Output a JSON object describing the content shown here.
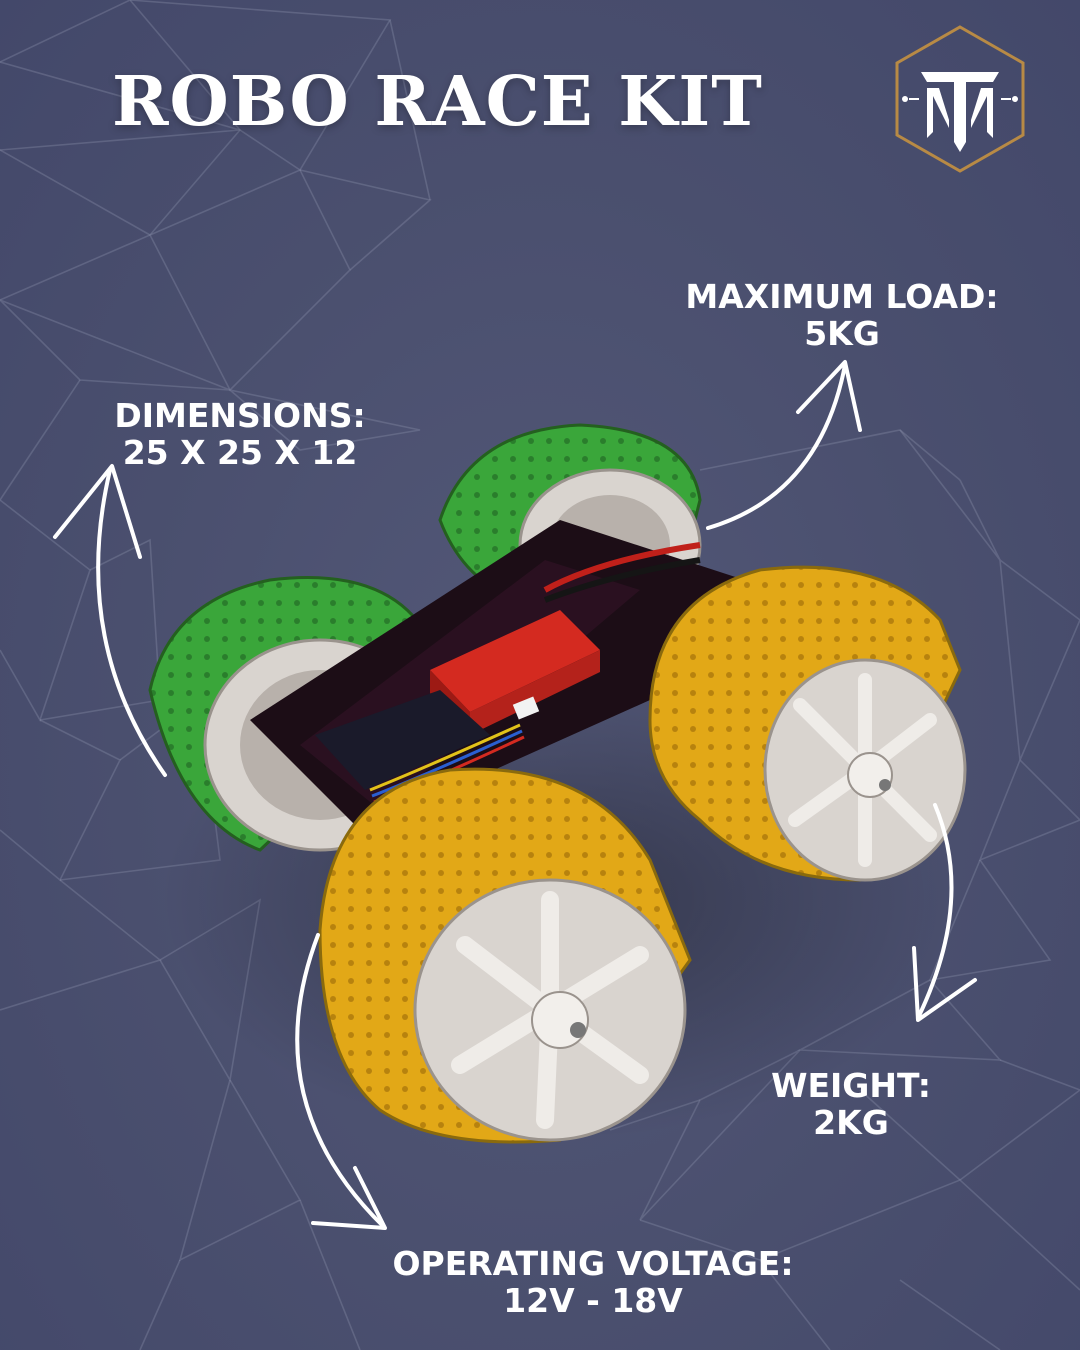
{
  "title": "ROBO RACE KIT",
  "logo": {
    "name": "tm-monogram-logo",
    "letters": "TM",
    "accent_color": "#b88a45"
  },
  "specs": {
    "max_load": {
      "label": "MAXIMUM LOAD:",
      "value": "5KG"
    },
    "dimensions": {
      "label": "DIMENSIONS:",
      "value": "25 X 25 X 12"
    },
    "weight": {
      "label": "WEIGHT:",
      "value": "2KG"
    },
    "voltage": {
      "label": "OPERATING VOLTAGE:",
      "value": "12V - 18V"
    }
  },
  "product": {
    "name": "robot-race-car",
    "wheel_colors": [
      "#3aa63a",
      "#e2a817"
    ],
    "battery_color": "#d42a20"
  },
  "colors": {
    "background": "#4a4f6e",
    "text": "#ffffff",
    "mesh": "#8d92ad"
  }
}
